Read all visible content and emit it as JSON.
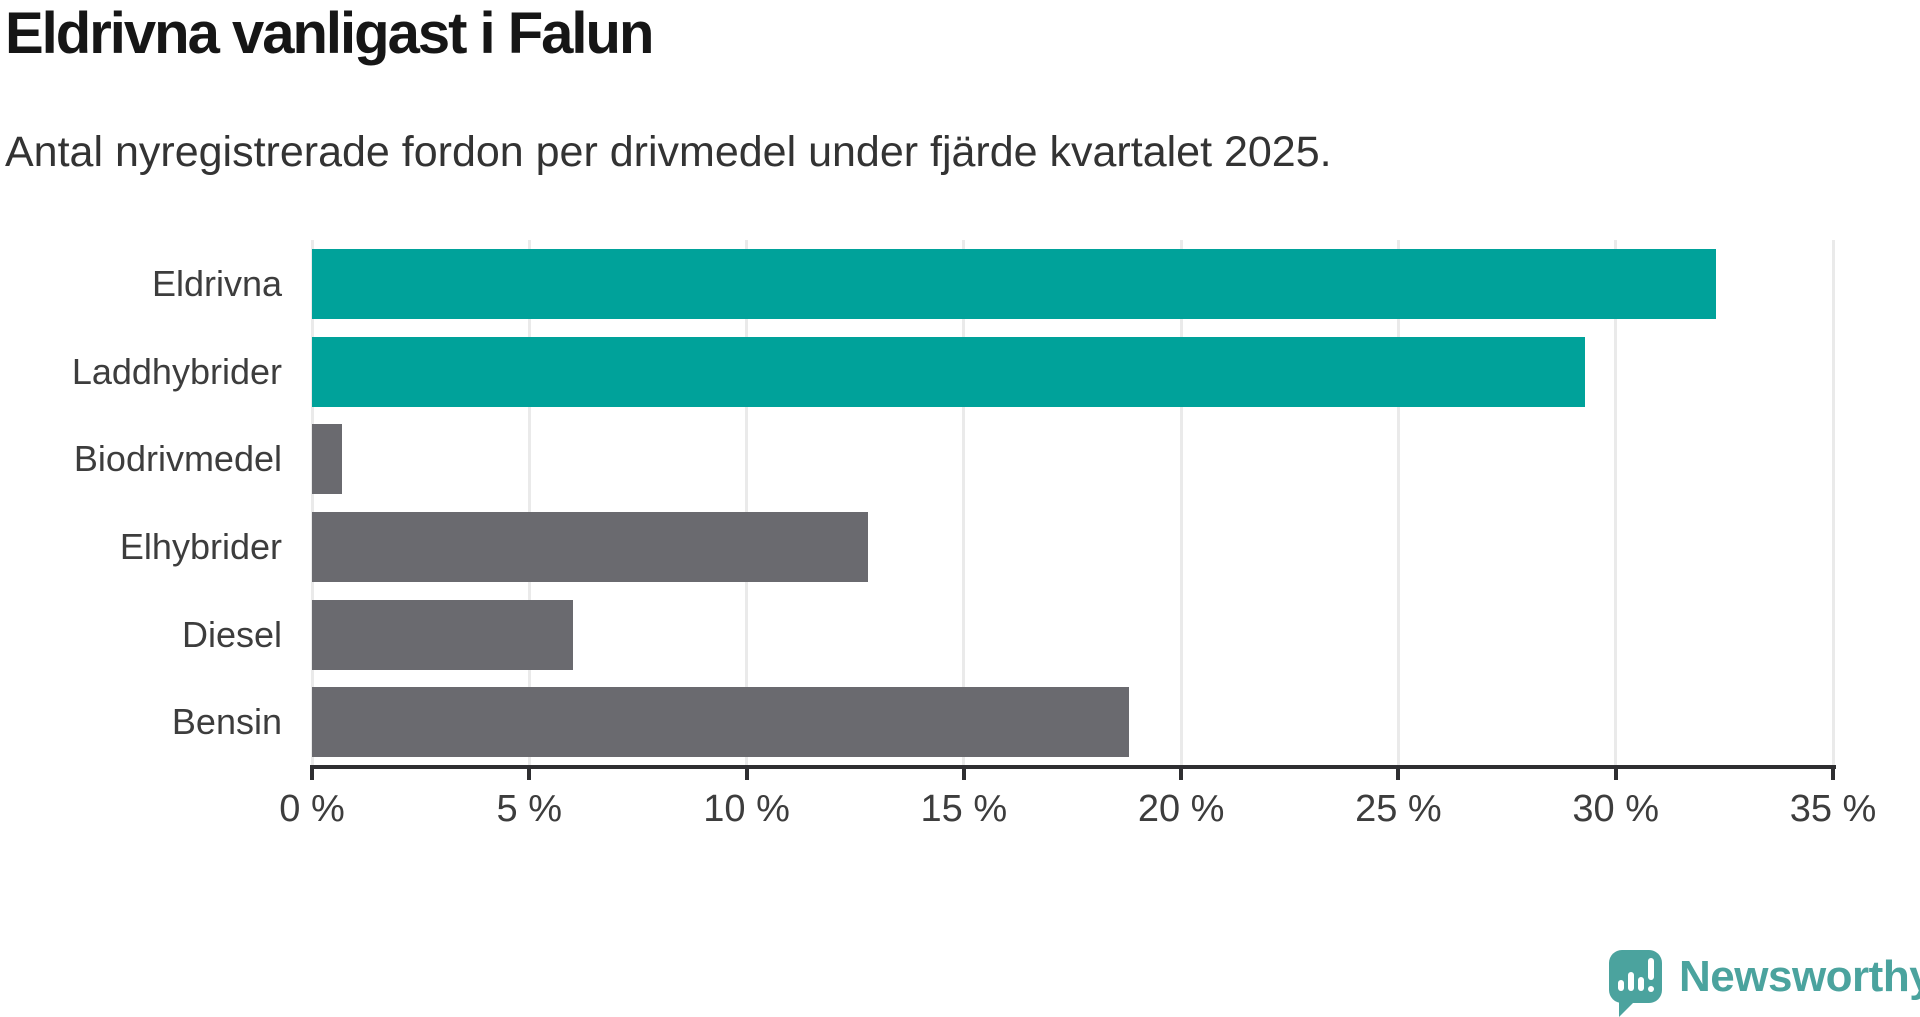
{
  "title": "Eldrivna vanligast i Falun",
  "subtitle": "Antal nyregistrerade fordon per drivmedel under fjärde kvartalet 2025.",
  "chart_data": {
    "type": "bar",
    "orientation": "horizontal",
    "title": "Eldrivna vanligast i Falun",
    "subtitle": "Antal nyregistrerade fordon per drivmedel under fjärde kvartalet 2025.",
    "categories": [
      "Eldrivna",
      "Laddhybrider",
      "Biodrivmedel",
      "Elhybrider",
      "Diesel",
      "Bensin"
    ],
    "values": [
      32.3,
      29.3,
      0.7,
      12.8,
      6,
      18.8
    ],
    "unit": "%",
    "xlim": [
      0,
      35
    ],
    "x_ticks": [
      0,
      5,
      10,
      15,
      20,
      25,
      30,
      35
    ],
    "x_tick_labels": [
      "0 %",
      "5 %",
      "10 %",
      "15 %",
      "20 %",
      "25 %",
      "30 %",
      "35 %"
    ],
    "grid": true,
    "legend": "none",
    "bar_colors": [
      "#00a29a",
      "#00a29a",
      "#6a6a6f",
      "#6a6a6f",
      "#6a6a6f",
      "#6a6a6f"
    ],
    "highlight_color": "#00a29a",
    "default_color": "#6a6a6f"
  },
  "colors": {
    "gridline": "#eaeaea",
    "axis": "#2e2e31",
    "text_dark": "#161616",
    "text_medium": "#333333",
    "text_label": "#3d3d3d",
    "logo": "#4ba39e"
  },
  "branding": {
    "logo_text": "Newsworthy"
  }
}
